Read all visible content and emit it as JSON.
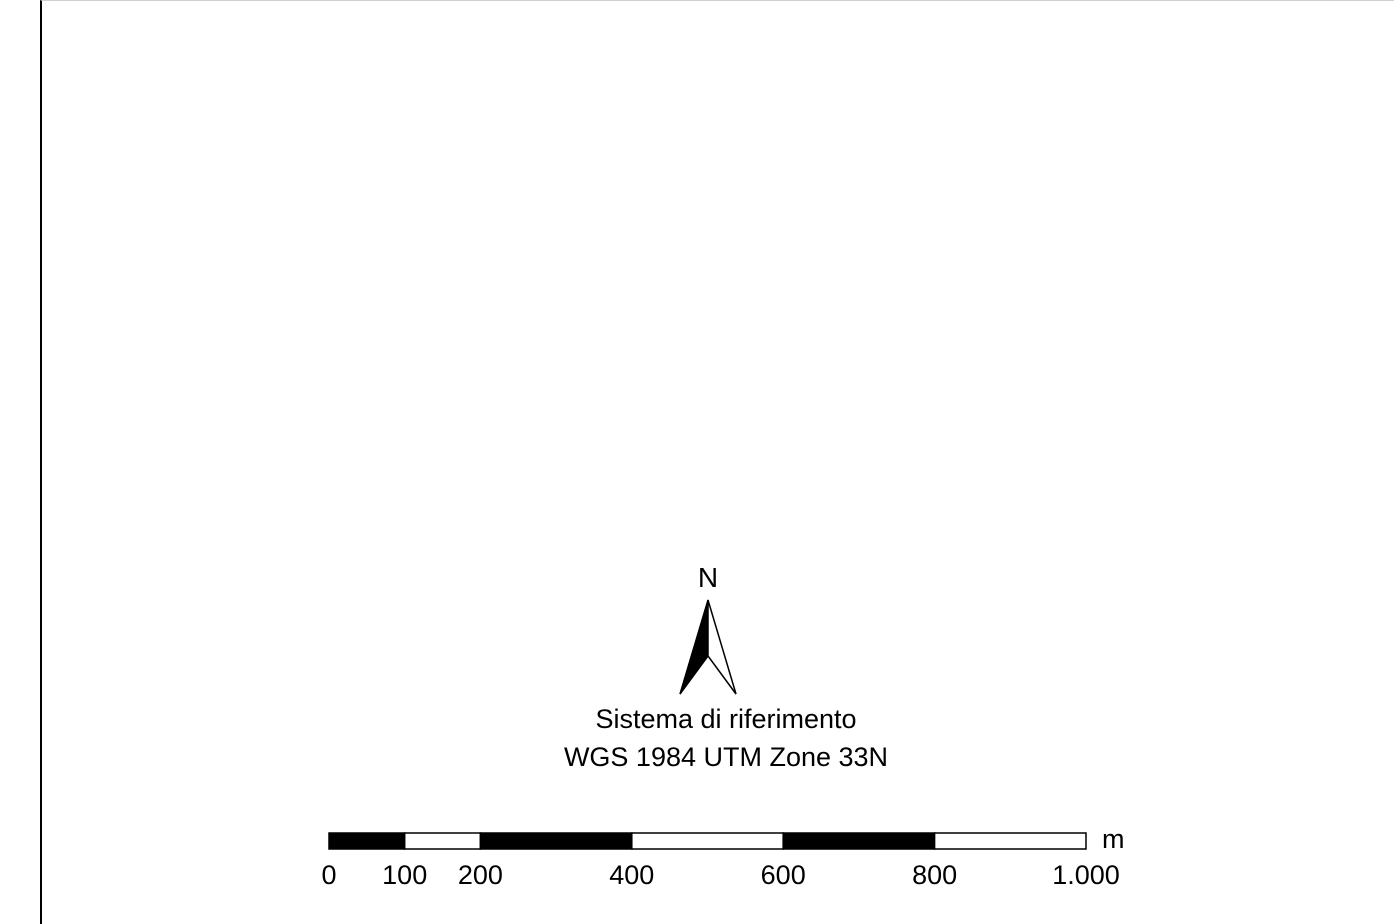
{
  "map": {
    "north_label": "N",
    "crs": {
      "title": "Sistema di riferimento",
      "name": "WGS 1984 UTM Zone 33N"
    },
    "scale_bar": {
      "unit": "m",
      "ticks": [
        {
          "value": 0,
          "label": "0"
        },
        {
          "value": 100,
          "label": "100"
        },
        {
          "value": 200,
          "label": "200"
        },
        {
          "value": 400,
          "label": "400"
        },
        {
          "value": 600,
          "label": "600"
        },
        {
          "value": 800,
          "label": "800"
        },
        {
          "value": 1000,
          "label": "1.000"
        }
      ],
      "segments": [
        {
          "from": 0,
          "to": 100,
          "fill": "black"
        },
        {
          "from": 100,
          "to": 200,
          "fill": "white"
        },
        {
          "from": 200,
          "to": 400,
          "fill": "black"
        },
        {
          "from": 400,
          "to": 600,
          "fill": "white"
        },
        {
          "from": 600,
          "to": 800,
          "fill": "black"
        },
        {
          "from": 800,
          "to": 1000,
          "fill": "white"
        }
      ]
    }
  }
}
